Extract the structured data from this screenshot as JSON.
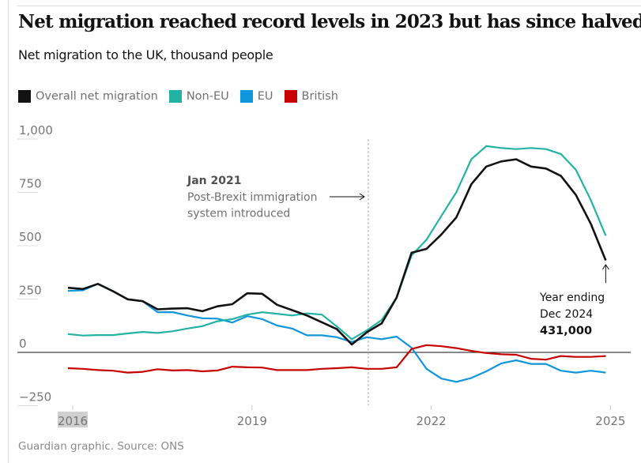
{
  "title": "Net migration reached record levels in 2023 but has since halved",
  "subtitle": "Net migration to the UK, thousand people",
  "footer": "Guardian graphic. Source: ONS",
  "chart_data": {
    "type": "line",
    "ylabel": "",
    "xlabel": "",
    "ylim": [
      -250,
      1000
    ],
    "xlim": [
      2016,
      2025
    ],
    "y_ticks": [
      "1,000",
      "750",
      "500",
      "250",
      "0",
      "−250"
    ],
    "y_tick_values": [
      1000,
      750,
      500,
      250,
      0,
      -250
    ],
    "x_ticks": [
      "2016",
      "2019",
      "2022",
      "2025"
    ],
    "x_tick_values": [
      2016,
      2019,
      2022,
      2025
    ],
    "grid": false,
    "legend": "top-left",
    "x": [
      2015.92,
      2016.17,
      2016.42,
      2016.67,
      2016.92,
      2017.17,
      2017.42,
      2017.67,
      2017.92,
      2018.17,
      2018.42,
      2018.67,
      2018.92,
      2019.17,
      2019.42,
      2019.67,
      2019.92,
      2020.17,
      2020.42,
      2020.67,
      2020.92,
      2021.17,
      2021.42,
      2021.67,
      2021.92,
      2022.17,
      2022.42,
      2022.67,
      2022.92,
      2023.17,
      2023.42,
      2023.67,
      2023.92,
      2024.17,
      2024.42,
      2024.67,
      2024.92
    ],
    "series": [
      {
        "name": "Overall net migration",
        "color": "#121212",
        "values": [
          303,
          297,
          321,
          287,
          249,
          240,
          202,
          205,
          207,
          193,
          216,
          226,
          277,
          275,
          223,
          198,
          173,
          141,
          109,
          37,
          94,
          136,
          257,
          467,
          485,
          553,
          633,
          788,
          871,
          895,
          905,
          871,
          862,
          827,
          738,
          603,
          431
        ]
      },
      {
        "name": "Non-EU",
        "color": "#22b3a4",
        "values": [
          86,
          79,
          81,
          81,
          89,
          96,
          91,
          99,
          112,
          123,
          146,
          156,
          177,
          188,
          181,
          173,
          183,
          177,
          121,
          62,
          103,
          152,
          257,
          454,
          528,
          640,
          751,
          905,
          967,
          958,
          953,
          958,
          953,
          930,
          856,
          714,
          547
        ]
      },
      {
        "name": "EU",
        "color": "#0f96dc",
        "values": [
          288,
          291,
          321,
          288,
          249,
          240,
          188,
          189,
          173,
          160,
          158,
          140,
          170,
          156,
          126,
          112,
          80,
          80,
          71,
          49,
          71,
          62,
          74,
          22,
          -77,
          -123,
          -138,
          -120,
          -89,
          -52,
          -37,
          -54,
          -54,
          -86,
          -95,
          -86,
          -95
        ]
      },
      {
        "name": "British",
        "color": "#c70000",
        "values": [
          -74,
          -77,
          -83,
          -86,
          -95,
          -91,
          -79,
          -85,
          -83,
          -89,
          -85,
          -67,
          -70,
          -71,
          -83,
          -83,
          -83,
          -77,
          -74,
          -70,
          -77,
          -77,
          -70,
          16,
          34,
          29,
          20,
          7,
          -3,
          -9,
          -11,
          -30,
          -34,
          -17,
          -21,
          -21,
          -17
        ]
      }
    ],
    "annotations": [
      {
        "x": 2021.0,
        "title": "Jan 2021",
        "lines": [
          "Post-Brexit immigration",
          "system introduced"
        ]
      },
      {
        "x": 2024.92,
        "lines": [
          "Year ending",
          "Dec 2024"
        ],
        "value_label": "431,000"
      }
    ]
  }
}
